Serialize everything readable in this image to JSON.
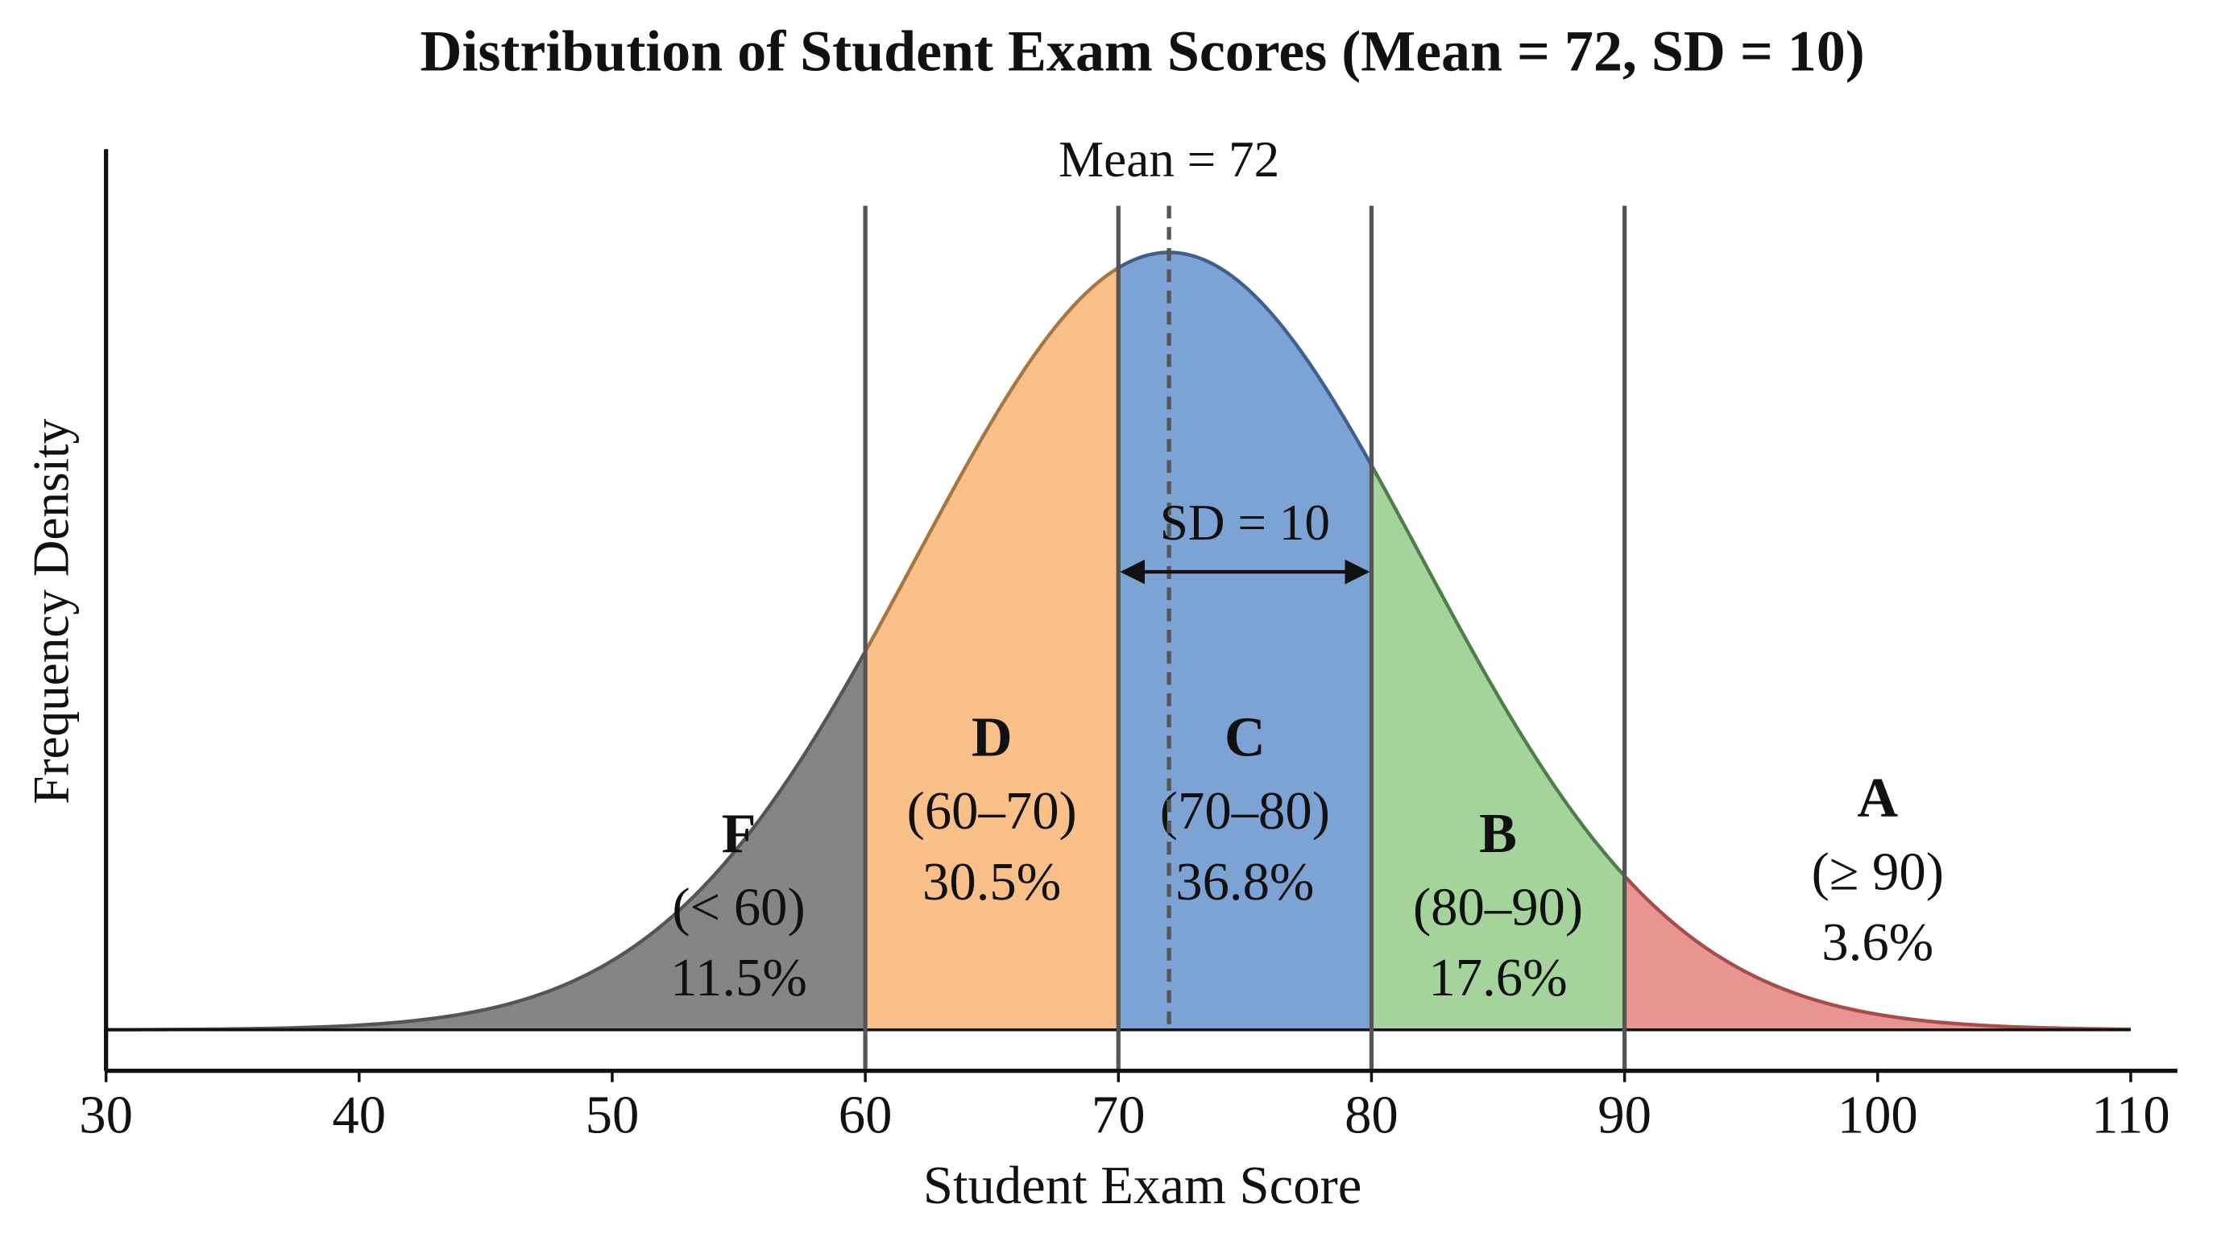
{
  "chart_data": {
    "type": "density",
    "title": "Distribution of Student Exam Scores (Mean = 72, SD = 10)",
    "x_label": "Student Exam Score",
    "y_label": "Frequency Density",
    "mean": 72,
    "sd": 10,
    "mean_label": "Mean = 72",
    "sd_label": "SD = 10",
    "xlim": [
      30,
      110
    ],
    "xticks": [
      30,
      40,
      50,
      60,
      70,
      80,
      90,
      100,
      110
    ],
    "boundaries": [
      60,
      70,
      80,
      90
    ],
    "series": [
      {
        "name": "F",
        "range": "(< 60)",
        "color": "#858585",
        "values": [
          11.5
        ],
        "value_labels": [
          "11.5%"
        ]
      },
      {
        "name": "D",
        "range": "(60–70)",
        "color": "#f9bf88",
        "values": [
          30.5
        ],
        "value_labels": [
          "30.5%"
        ]
      },
      {
        "name": "C",
        "range": "(70–80)",
        "color": "#7ca3d3",
        "values": [
          36.8
        ],
        "value_labels": [
          "36.8%"
        ]
      },
      {
        "name": "B",
        "range": "(80–90)",
        "color": "#a4d49b",
        "values": [
          17.6
        ],
        "value_labels": [
          "17.6%"
        ]
      },
      {
        "name": "A",
        "range": "(≥ 90)",
        "color": "#e89592",
        "values": [
          3.6
        ],
        "value_labels": [
          "3.6%"
        ]
      }
    ]
  }
}
